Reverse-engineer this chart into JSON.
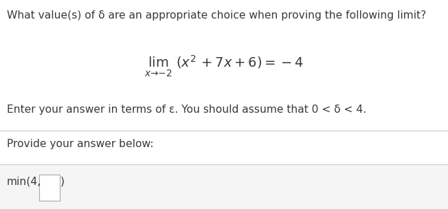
{
  "title_text": "What value(s) of δ are an appropriate choice when proving the following limit?",
  "instruction_text": "Enter your answer in terms of ε. You should assume that 0 < δ < 4.",
  "answer_label": "Provide your answer below:",
  "answer_prefix": "min(4,",
  "answer_suffix": ")",
  "bg_color": "#ffffff",
  "text_color": "#3a3a3a",
  "separator_color": "#cccccc",
  "bottom_bg_color": "#f5f5f5",
  "font_size_title": 11.2,
  "font_size_body": 11.2,
  "font_size_math": 14,
  "font_size_answer": 11.2,
  "box_border": "#aaaaaa"
}
